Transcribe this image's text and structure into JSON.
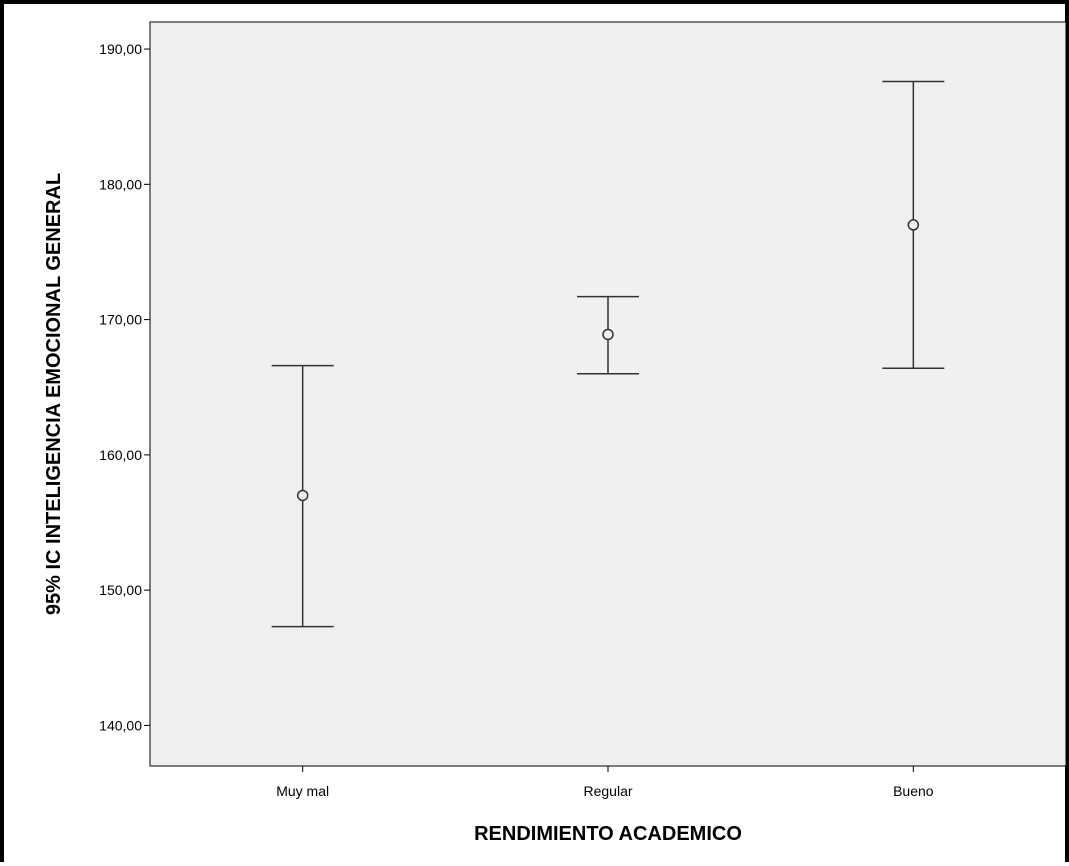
{
  "chart_data": {
    "type": "errorbar",
    "xlabel": "RENDIMIENTO ACADEMICO",
    "ylabel": "95% IC INTELIGENCIA EMOCIONAL GENERAL",
    "ylim": [
      137,
      192
    ],
    "yticks": [
      140,
      150,
      160,
      170,
      180,
      190
    ],
    "ytick_labels": [
      "140,00",
      "150,00",
      "160,00",
      "170,00",
      "180,00",
      "190,00"
    ],
    "categories": [
      "Muy mal",
      "Regular",
      "Bueno"
    ],
    "means": [
      157.0,
      168.9,
      177.0
    ],
    "lower": [
      147.3,
      166.0,
      166.4
    ],
    "upper": [
      166.6,
      171.7,
      187.6
    ],
    "grid": false,
    "legend": "none",
    "colors": {
      "plot_bg": "#f0f0f0",
      "line": "#333333",
      "axis": "#000000"
    }
  }
}
